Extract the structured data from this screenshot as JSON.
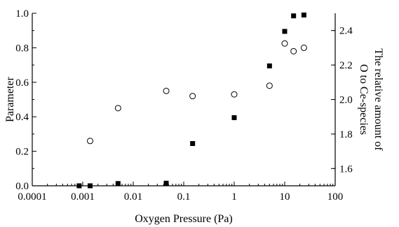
{
  "chart_data": {
    "type": "scatter",
    "title": "",
    "xlabel": "Oxygen Pressure (Pa)",
    "ylabel": "Parameter",
    "ylabel_right": [
      "The relative amount of",
      "O to Ce-species"
    ],
    "x_scale": "log",
    "xlim": [
      0.0001,
      100
    ],
    "ylim": [
      0.0,
      1.0
    ],
    "ylim_right": [
      1.5,
      2.5
    ],
    "x_ticks": [
      {
        "value": 0.0001,
        "label": "0.0001"
      },
      {
        "value": 0.001,
        "label": "0.001"
      },
      {
        "value": 0.01,
        "label": "0.01"
      },
      {
        "value": 0.1,
        "label": "0.1"
      },
      {
        "value": 1,
        "label": "1"
      },
      {
        "value": 10,
        "label": "10"
      },
      {
        "value": 100,
        "label": "100"
      }
    ],
    "y_ticks": [
      "0.0",
      "0.2",
      "0.4",
      "0.6",
      "0.8",
      "1.0"
    ],
    "y_ticks_right": [
      "1.6",
      "1.8",
      "2.0",
      "2.2",
      "2.4"
    ],
    "grid": false,
    "legend": "none",
    "series": [
      {
        "marker": "filled-square",
        "axis": "left",
        "color": "#000000",
        "points": [
          {
            "x": 0.00085,
            "y": 0.0
          },
          {
            "x": 0.0014,
            "y": 0.0
          },
          {
            "x": 0.005,
            "y": 0.013
          },
          {
            "x": 0.045,
            "y": 0.015
          },
          {
            "x": 0.15,
            "y": 0.245
          },
          {
            "x": 1.0,
            "y": 0.395
          },
          {
            "x": 5.0,
            "y": 0.695
          },
          {
            "x": 10.0,
            "y": 0.895
          },
          {
            "x": 15.0,
            "y": 0.985
          },
          {
            "x": 24.0,
            "y": 0.99
          }
        ]
      },
      {
        "marker": "open-circle",
        "axis": "right",
        "color": "#000000",
        "points": [
          {
            "x": 0.0014,
            "y": 1.76
          },
          {
            "x": 0.005,
            "y": 1.95
          },
          {
            "x": 0.045,
            "y": 2.05
          },
          {
            "x": 0.15,
            "y": 2.02
          },
          {
            "x": 1.0,
            "y": 2.03
          },
          {
            "x": 5.0,
            "y": 2.08
          },
          {
            "x": 10.0,
            "y": 2.325
          },
          {
            "x": 15.0,
            "y": 2.28
          },
          {
            "x": 24.0,
            "y": 2.3
          }
        ]
      }
    ]
  }
}
